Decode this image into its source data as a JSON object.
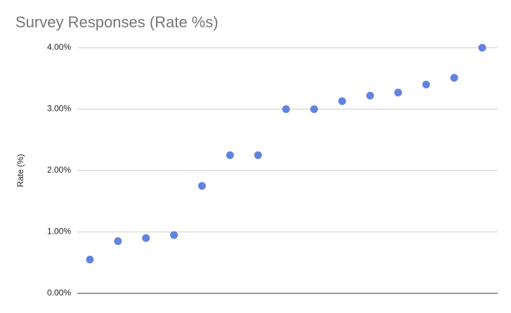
{
  "chart_data": {
    "type": "scatter",
    "title": "Survey Responses (Rate %s)",
    "y_label": "Rate (%)",
    "categories": [
      null,
      null,
      null,
      null,
      null,
      null,
      null,
      null,
      null,
      null,
      null,
      null,
      null,
      null,
      null
    ],
    "series": [
      {
        "name": "Rate",
        "color": "#6183e1",
        "values": [
          0.55,
          0.85,
          0.9,
          0.95,
          1.75,
          2.25,
          2.25,
          3.0,
          3.0,
          3.13,
          3.22,
          3.27,
          3.4,
          3.51,
          4.0
        ]
      }
    ],
    "ylim": [
      0,
      4
    ],
    "yticks": [
      {
        "value": 0,
        "label": "0.00%"
      },
      {
        "value": 1,
        "label": "1.00%"
      },
      {
        "value": 2,
        "label": "2.00%"
      },
      {
        "value": 3,
        "label": "3.00%"
      },
      {
        "value": 4,
        "label": "4.00%"
      }
    ],
    "grid": true
  }
}
